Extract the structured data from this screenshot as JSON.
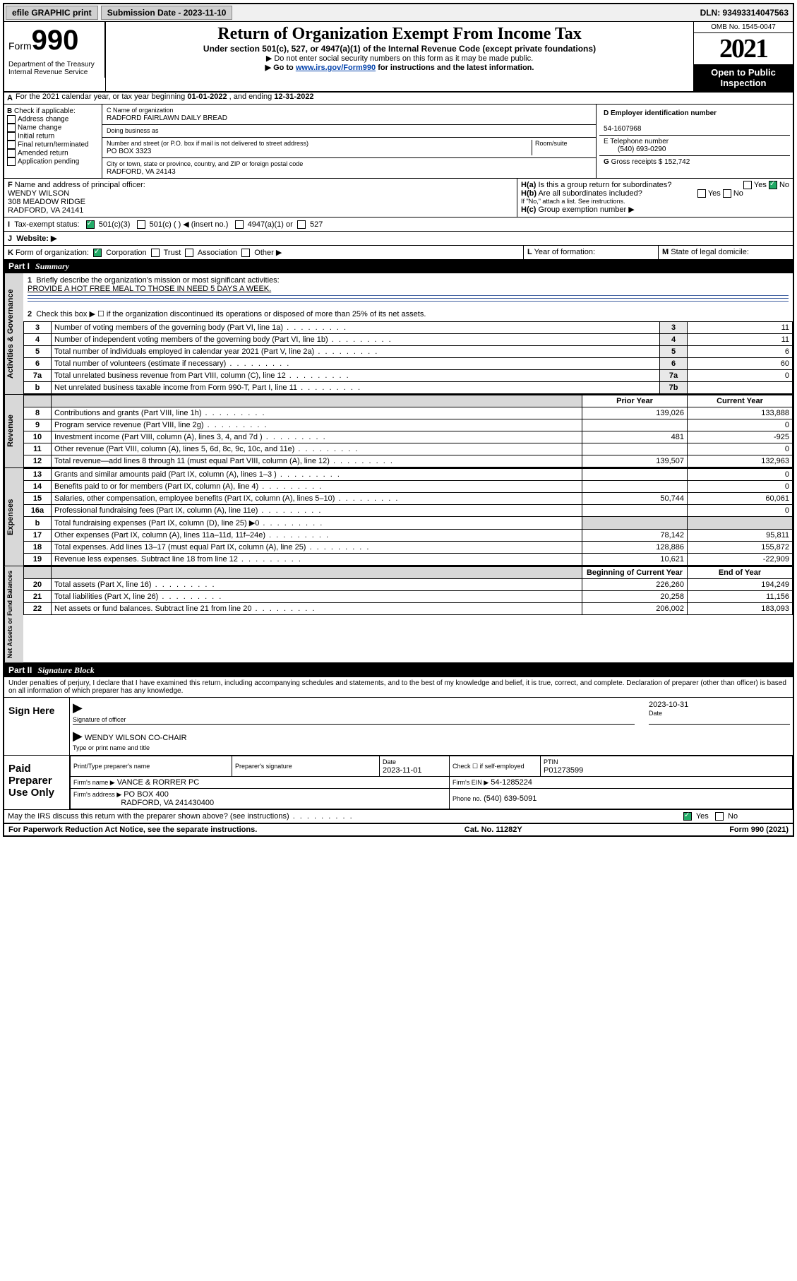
{
  "topbar": {
    "efile": "efile GRAPHIC print",
    "submission_label": "Submission Date - 2023-11-10",
    "dln_label": "DLN: 93493314047563"
  },
  "header": {
    "form_word": "Form",
    "form_num": "990",
    "dept": "Department of the Treasury\nInternal Revenue Service",
    "title": "Return of Organization Exempt From Income Tax",
    "subtitle": "Under section 501(c), 527, or 4947(a)(1) of the Internal Revenue Code (except private foundations)",
    "note1": "▶ Do not enter social security numbers on this form as it may be made public.",
    "note2_pre": "▶ Go to ",
    "note2_link": "www.irs.gov/Form990",
    "note2_post": " for instructions and the latest information.",
    "omb": "OMB No. 1545-0047",
    "year": "2021",
    "open": "Open to Public Inspection"
  },
  "rowA": {
    "label": "A",
    "text_pre": "For the 2021 calendar year, or tax year beginning ",
    "begin": "01-01-2022",
    "mid": " , and ending ",
    "end": "12-31-2022"
  },
  "secB": {
    "label": "B",
    "check_label": "Check if applicable:",
    "opts": [
      "Address change",
      "Name change",
      "Initial return",
      "Final return/terminated",
      "Amended return",
      "Application pending"
    ]
  },
  "secC": {
    "name_label": "C Name of organization",
    "name": "RADFORD FAIRLAWN DAILY BREAD",
    "dba_label": "Doing business as",
    "addr_label": "Number and street (or P.O. box if mail is not delivered to street address)",
    "room_label": "Room/suite",
    "addr": "PO BOX 3323",
    "city_label": "City or town, state or province, country, and ZIP or foreign postal code",
    "city": "RADFORD, VA  24143"
  },
  "secD": {
    "label": "D Employer identification number",
    "ein": "54-1607968"
  },
  "secE": {
    "label": "E Telephone number",
    "phone": "(540) 693-0290"
  },
  "secG": {
    "label": "G",
    "text": "Gross receipts $",
    "val": "152,742"
  },
  "secF": {
    "label": "F",
    "text": "Name and address of principal officer:",
    "name": "WENDY WILSON",
    "addr1": "308 MEADOW RIDGE",
    "addr2": "RADFORD, VA  24141"
  },
  "secH": {
    "a_label": "H(a)",
    "a_text": "Is this a group return for subordinates?",
    "a_yes": "Yes",
    "a_no": "No",
    "b_label": "H(b)",
    "b_text": "Are all subordinates included?",
    "b_note": "If \"No,\" attach a list. See instructions.",
    "c_label": "H(c)",
    "c_text": "Group exemption number ▶"
  },
  "secI": {
    "label": "I",
    "text": "Tax-exempt status:",
    "opt1": "501(c)(3)",
    "opt2": "501(c) (  ) ◀ (insert no.)",
    "opt3": "4947(a)(1) or",
    "opt4": "527"
  },
  "secJ": {
    "label": "J",
    "text": "Website: ▶"
  },
  "secK": {
    "label": "K",
    "text": "Form of organization:",
    "opts": [
      "Corporation",
      "Trust",
      "Association",
      "Other ▶"
    ]
  },
  "secL": {
    "label": "L",
    "text": "Year of formation:"
  },
  "secM": {
    "label": "M",
    "text": "State of legal domicile:"
  },
  "part1": {
    "num": "Part I",
    "title": "Summary",
    "q1_label": "1",
    "q1_text": "Briefly describe the organization's mission or most significant activities:",
    "q1_ans": "PROVIDE A HOT FREE MEAL TO THOSE IN NEED 5 DAYS A WEEK.",
    "q2_label": "2",
    "q2_text": "Check this box ▶ ☐ if the organization discontinued its operations or disposed of more than 25% of its net assets.",
    "lines": [
      {
        "n": "3",
        "t": "Number of voting members of the governing body (Part VI, line 1a)",
        "box": "3",
        "v": "11"
      },
      {
        "n": "4",
        "t": "Number of independent voting members of the governing body (Part VI, line 1b)",
        "box": "4",
        "v": "11"
      },
      {
        "n": "5",
        "t": "Total number of individuals employed in calendar year 2021 (Part V, line 2a)",
        "box": "5",
        "v": "6"
      },
      {
        "n": "6",
        "t": "Total number of volunteers (estimate if necessary)",
        "box": "6",
        "v": "60"
      },
      {
        "n": "7a",
        "t": "Total unrelated business revenue from Part VIII, column (C), line 12",
        "box": "7a",
        "v": "0"
      },
      {
        "n": "b",
        "t": "Net unrelated business taxable income from Form 990-T, Part I, line 11",
        "box": "7b",
        "v": ""
      }
    ],
    "col_prior": "Prior Year",
    "col_curr": "Current Year",
    "rev_rows": [
      {
        "n": "8",
        "t": "Contributions and grants (Part VIII, line 1h)",
        "p": "139,026",
        "c": "133,888"
      },
      {
        "n": "9",
        "t": "Program service revenue (Part VIII, line 2g)",
        "p": "",
        "c": "0"
      },
      {
        "n": "10",
        "t": "Investment income (Part VIII, column (A), lines 3, 4, and 7d )",
        "p": "481",
        "c": "-925"
      },
      {
        "n": "11",
        "t": "Other revenue (Part VIII, column (A), lines 5, 6d, 8c, 9c, 10c, and 11e)",
        "p": "",
        "c": "0"
      },
      {
        "n": "12",
        "t": "Total revenue—add lines 8 through 11 (must equal Part VIII, column (A), line 12)",
        "p": "139,507",
        "c": "132,963"
      }
    ],
    "exp_rows": [
      {
        "n": "13",
        "t": "Grants and similar amounts paid (Part IX, column (A), lines 1–3 )",
        "p": "",
        "c": "0"
      },
      {
        "n": "14",
        "t": "Benefits paid to or for members (Part IX, column (A), line 4)",
        "p": "",
        "c": "0"
      },
      {
        "n": "15",
        "t": "Salaries, other compensation, employee benefits (Part IX, column (A), lines 5–10)",
        "p": "50,744",
        "c": "60,061"
      },
      {
        "n": "16a",
        "t": "Professional fundraising fees (Part IX, column (A), line 11e)",
        "p": "",
        "c": "0"
      },
      {
        "n": "b",
        "t": "Total fundraising expenses (Part IX, column (D), line 25) ▶0",
        "p": "grey",
        "c": "grey"
      },
      {
        "n": "17",
        "t": "Other expenses (Part IX, column (A), lines 11a–11d, 11f–24e)",
        "p": "78,142",
        "c": "95,811"
      },
      {
        "n": "18",
        "t": "Total expenses. Add lines 13–17 (must equal Part IX, column (A), line 25)",
        "p": "128,886",
        "c": "155,872"
      },
      {
        "n": "19",
        "t": "Revenue less expenses. Subtract line 18 from line 12",
        "p": "10,621",
        "c": "-22,909"
      }
    ],
    "col_begin": "Beginning of Current Year",
    "col_end": "End of Year",
    "net_rows": [
      {
        "n": "20",
        "t": "Total assets (Part X, line 16)",
        "p": "226,260",
        "c": "194,249"
      },
      {
        "n": "21",
        "t": "Total liabilities (Part X, line 26)",
        "p": "20,258",
        "c": "11,156"
      },
      {
        "n": "22",
        "t": "Net assets or fund balances. Subtract line 21 from line 20",
        "p": "206,002",
        "c": "183,093"
      }
    ],
    "tab_gov": "Activities & Governance",
    "tab_rev": "Revenue",
    "tab_exp": "Expenses",
    "tab_net": "Net Assets or Fund Balances"
  },
  "part2": {
    "num": "Part II",
    "title": "Signature Block",
    "decl": "Under penalties of perjury, I declare that I have examined this return, including accompanying schedules and statements, and to the best of my knowledge and belief, it is true, correct, and complete. Declaration of preparer (other than officer) is based on all information of which preparer has any knowledge.",
    "sign_here": "Sign Here",
    "sig_officer": "Signature of officer",
    "sig_date": "Date",
    "sig_date_val": "2023-10-31",
    "officer_name": "WENDY WILSON  CO-CHAIR",
    "officer_label": "Type or print name and title",
    "paid": "Paid Preparer Use Only",
    "prep_name_label": "Print/Type preparer's name",
    "prep_sig_label": "Preparer's signature",
    "prep_date_label": "Date",
    "prep_date": "2023-11-01",
    "check_self": "Check ☐ if self-employed",
    "ptin_label": "PTIN",
    "ptin": "P01273599",
    "firm_name_label": "Firm's name    ▶",
    "firm_name": "VANCE & RORRER PC",
    "firm_ein_label": "Firm's EIN ▶",
    "firm_ein": "54-1285224",
    "firm_addr_label": "Firm's address ▶",
    "firm_addr": "PO BOX 400",
    "firm_city": "RADFORD, VA  241430400",
    "firm_phone_label": "Phone no.",
    "firm_phone": "(540) 639-5091",
    "discuss": "May the IRS discuss this return with the preparer shown above? (see instructions)",
    "discuss_yes": "Yes",
    "discuss_no": "No"
  },
  "footer": {
    "left": "For Paperwork Reduction Act Notice, see the separate instructions.",
    "mid": "Cat. No. 11282Y",
    "right": "Form 990 (2021)"
  }
}
